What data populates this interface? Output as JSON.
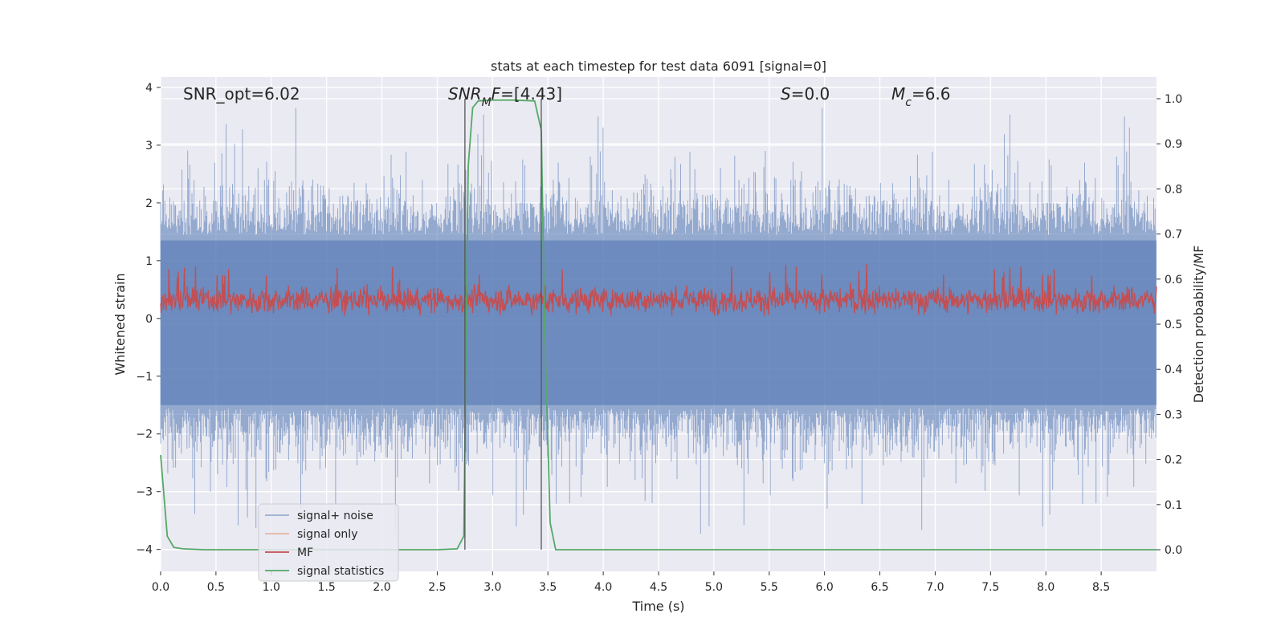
{
  "chart_data": {
    "type": "line",
    "title": "stats at each timestep for test data 6091 [signal=0]",
    "xlabel": "Time (s)",
    "ylabel_left": "Whitened strain",
    "ylabel_right": "Detection probability/MF",
    "xlim": [
      0.0,
      9.0
    ],
    "ylim_left": [
      -4.38,
      4.18
    ],
    "ylim_right": [
      -0.048,
      1.048
    ],
    "xticks": [
      0.0,
      0.5,
      1.0,
      1.5,
      2.0,
      2.5,
      3.0,
      3.5,
      4.0,
      4.5,
      5.0,
      5.5,
      6.0,
      6.5,
      7.0,
      7.5,
      8.0,
      8.5
    ],
    "xtick_labels": [
      "0.0",
      "0.5",
      "1.0",
      "1.5",
      "2.0",
      "2.5",
      "3.0",
      "3.5",
      "4.0",
      "4.5",
      "5.0",
      "5.5",
      "6.0",
      "6.5",
      "7.0",
      "7.5",
      "8.0",
      "8.5"
    ],
    "yticks_left": [
      -4,
      -3,
      -2,
      -1,
      0,
      1,
      2,
      3,
      4
    ],
    "ytick_labels_left": [
      "−4",
      "−3",
      "−2",
      "−1",
      "0",
      "1",
      "2",
      "3",
      "4"
    ],
    "yticks_right": [
      0.0,
      0.1,
      0.2,
      0.3,
      0.4,
      0.5,
      0.6,
      0.7,
      0.8,
      0.9,
      1.0
    ],
    "ytick_labels_right": [
      "0.0",
      "0.1",
      "0.2",
      "0.3",
      "0.4",
      "0.5",
      "0.6",
      "0.7",
      "0.8",
      "0.9",
      "1.0"
    ],
    "annotations": [
      {
        "parts": [
          {
            "t": "SNR_opt=6.02",
            "i": false
          }
        ]
      },
      {
        "parts": [
          {
            "t": "SNR",
            "i": true
          },
          {
            "t": "M",
            "i": true,
            "sub": true
          },
          {
            "t": "F",
            "i": true
          },
          {
            "t": "=[4.43]",
            "i": false
          }
        ]
      },
      {
        "parts": [
          {
            "t": "S",
            "i": true
          },
          {
            "t": "=0.0",
            "i": false
          }
        ]
      },
      {
        "parts": [
          {
            "t": "M",
            "i": true
          },
          {
            "t": "c",
            "i": true,
            "sub": true
          },
          {
            "t": "=6.6",
            "i": false
          }
        ]
      }
    ],
    "vlines_x": [
      2.75,
      3.44
    ],
    "series": [
      {
        "name": "signal+ noise",
        "color": "#4c72b0",
        "opacity": 0.5,
        "axis": "left",
        "style": "noise",
        "amplitude": [
          -3.9,
          3.8
        ]
      },
      {
        "name": "signal only",
        "color": "#dd8452",
        "opacity": 0.5,
        "axis": "left",
        "values": []
      },
      {
        "name": "MF",
        "color": "#c44e52",
        "axis": "left",
        "style": "noise",
        "range": [
          0.05,
          0.75
        ],
        "peak": 1.0
      },
      {
        "name": "signal statistics",
        "color": "#55a868",
        "axis": "right",
        "x": [
          0.0,
          0.06,
          0.12,
          0.2,
          0.4,
          0.8,
          1.5,
          2.0,
          2.5,
          2.68,
          2.74,
          2.78,
          2.82,
          2.87,
          3.0,
          3.2,
          3.38,
          3.44,
          3.47,
          3.52,
          3.57,
          3.65,
          4.0,
          5.0,
          6.0,
          7.0,
          8.0,
          9.0
        ],
        "y": [
          0.21,
          0.03,
          0.005,
          0.002,
          0.0,
          0.0,
          0.0,
          0.0,
          0.0,
          0.002,
          0.03,
          0.85,
          0.98,
          0.995,
          0.997,
          0.997,
          0.995,
          0.93,
          0.5,
          0.06,
          0.0,
          0.0,
          0.0,
          0.0,
          0.0,
          0.0,
          0.0,
          0.0
        ]
      }
    ],
    "legend": {
      "placement": "lower-left",
      "entries": [
        "signal+ noise",
        "signal only",
        "MF",
        "signal statistics"
      ]
    }
  }
}
